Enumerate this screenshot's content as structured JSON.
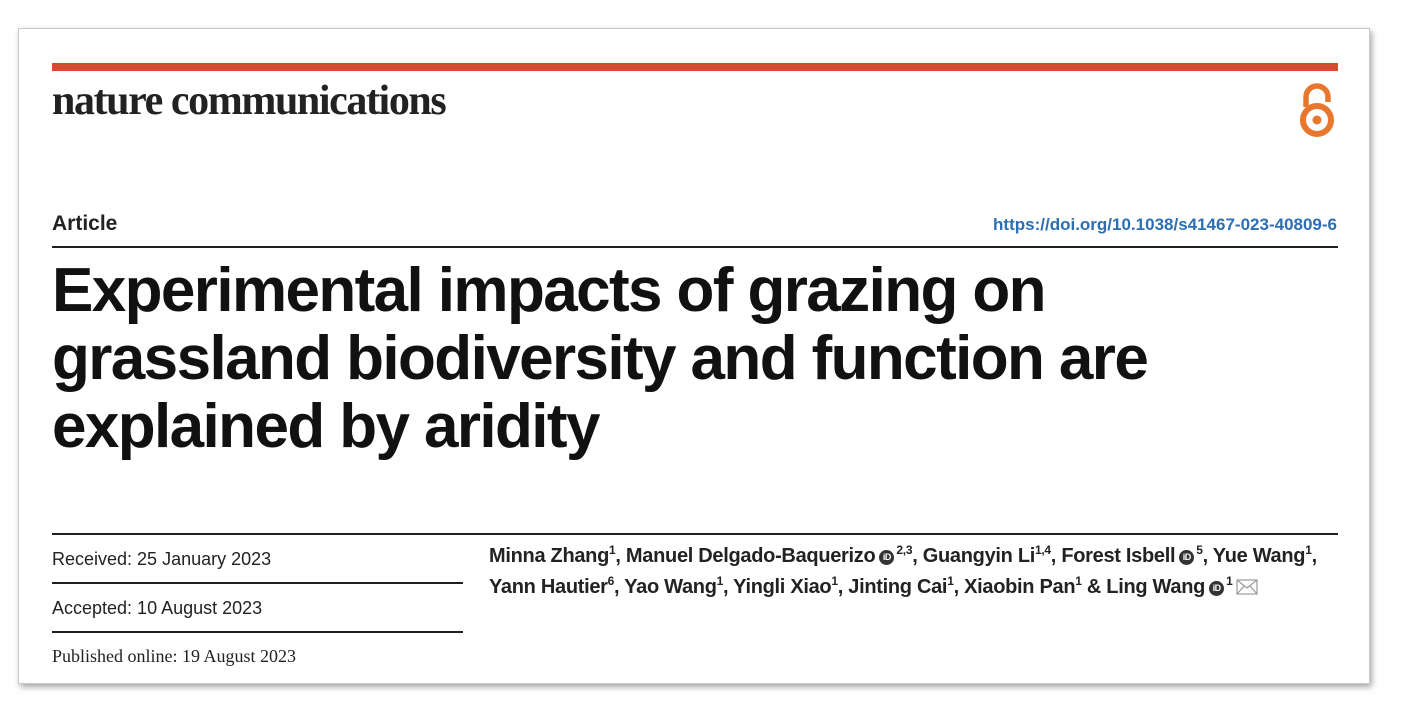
{
  "journal": {
    "name": "nature communications"
  },
  "header": {
    "article_type": "Article",
    "doi": "https://doi.org/10.1038/s41467-023-40809-6"
  },
  "title": {
    "line1": "Experimental impacts of grazing on",
    "line2": "grassland biodiversity and function are",
    "line3": "explained by aridity"
  },
  "dates": {
    "received": "Received: 25 January 2023",
    "accepted": "Accepted: 10 August 2023",
    "published": "Published online: 19 August 2023"
  },
  "authors": [
    {
      "name": "Minna Zhang",
      "aff": "1",
      "orcid": false,
      "sep": ", "
    },
    {
      "name": "Manuel Delgado-Baquerizo",
      "aff": "2,3",
      "orcid": true,
      "sep": ", "
    },
    {
      "name": "Guangyin Li",
      "aff": "1,4",
      "orcid": false,
      "sep": ", "
    },
    {
      "name": "Forest Isbell",
      "aff": "5",
      "orcid": true,
      "sep": ", "
    },
    {
      "name": "Yue Wang",
      "aff": "1",
      "orcid": false,
      "sep": ", "
    },
    {
      "name": "Yann Hautier",
      "aff": "6",
      "orcid": false,
      "sep": ", "
    },
    {
      "name": "Yao Wang",
      "aff": "1",
      "orcid": false,
      "sep": ", "
    },
    {
      "name": "Yingli Xiao",
      "aff": "1",
      "orcid": false,
      "sep": ", "
    },
    {
      "name": "Jinting Cai",
      "aff": "1",
      "orcid": false,
      "sep": ", "
    },
    {
      "name": "Xiaobin Pan",
      "aff": "1",
      "orcid": false,
      "sep": " & "
    },
    {
      "name": "Ling Wang",
      "aff": "1",
      "orcid": true,
      "sep": "",
      "corresponding": true
    }
  ],
  "icons": {
    "open_access": "open-access-icon",
    "orcid": "orcid-icon",
    "mail": "mail-icon"
  },
  "colors": {
    "accent_bar": "#d8492f",
    "open_access": "#e8772e",
    "doi_link": "#2c6fb3"
  }
}
